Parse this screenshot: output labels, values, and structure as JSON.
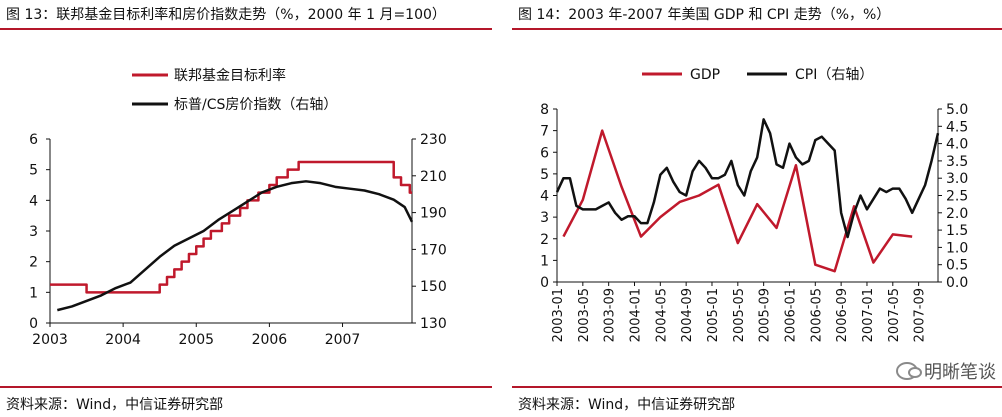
{
  "left": {
    "title": "图 13：联邦基金目标利率和房价指数走势（%，2000 年 1 月=100）",
    "source": "资料来源：Wind，中信证券研究部",
    "chart_data": {
      "type": "line",
      "title": "图 13：联邦基金目标利率和房价指数走势（%，2000 年 1 月=100）",
      "x_tick_labels": [
        "2003",
        "2004",
        "2005",
        "2006",
        "2007"
      ],
      "y_left": {
        "ticks": [
          "0",
          "1",
          "2",
          "3",
          "4",
          "5",
          "6"
        ],
        "range": [
          0,
          6
        ]
      },
      "y_right": {
        "ticks": [
          "130",
          "150",
          "170",
          "190",
          "210",
          "230"
        ],
        "range": [
          130,
          230
        ]
      },
      "x_range": [
        2003.0,
        2007.95
      ],
      "legend": [
        "联邦基金目标利率",
        "标普/CS房价指数（右轴）"
      ],
      "legend_position": "top",
      "series": [
        {
          "name": "联邦基金目标利率",
          "axis": "left",
          "color": "#c0192c",
          "step": true,
          "points": [
            [
              2003.0,
              1.25
            ],
            [
              2003.5,
              1.0
            ],
            [
              2004.5,
              1.25
            ],
            [
              2004.6,
              1.5
            ],
            [
              2004.7,
              1.75
            ],
            [
              2004.8,
              2.0
            ],
            [
              2004.9,
              2.25
            ],
            [
              2005.0,
              2.5
            ],
            [
              2005.1,
              2.75
            ],
            [
              2005.2,
              3.0
            ],
            [
              2005.35,
              3.25
            ],
            [
              2005.45,
              3.5
            ],
            [
              2005.6,
              3.75
            ],
            [
              2005.7,
              4.0
            ],
            [
              2005.85,
              4.25
            ],
            [
              2006.0,
              4.5
            ],
            [
              2006.1,
              4.75
            ],
            [
              2006.25,
              5.0
            ],
            [
              2006.4,
              5.25
            ],
            [
              2007.7,
              4.75
            ],
            [
              2007.8,
              4.5
            ],
            [
              2007.92,
              4.25
            ],
            [
              2007.95,
              4.25
            ]
          ]
        },
        {
          "name": "标普/CS房价指数（右轴）",
          "axis": "right",
          "color": "#111111",
          "step": false,
          "points": [
            [
              2003.1,
              137
            ],
            [
              2003.3,
              139
            ],
            [
              2003.5,
              142
            ],
            [
              2003.7,
              145
            ],
            [
              2003.9,
              149
            ],
            [
              2004.1,
              152
            ],
            [
              2004.3,
              159
            ],
            [
              2004.5,
              166
            ],
            [
              2004.7,
              172
            ],
            [
              2004.9,
              176
            ],
            [
              2005.1,
              180
            ],
            [
              2005.3,
              186
            ],
            [
              2005.5,
              191
            ],
            [
              2005.7,
              196
            ],
            [
              2005.9,
              201
            ],
            [
              2006.1,
              204
            ],
            [
              2006.3,
              206
            ],
            [
              2006.5,
              207
            ],
            [
              2006.7,
              206
            ],
            [
              2006.9,
              204
            ],
            [
              2007.1,
              203
            ],
            [
              2007.3,
              202
            ],
            [
              2007.5,
              200
            ],
            [
              2007.7,
              197
            ],
            [
              2007.85,
              193
            ],
            [
              2007.95,
              185
            ]
          ]
        }
      ]
    }
  },
  "right": {
    "title": "图 14：2003 年-2007 年美国 GDP 和 CPI 走势（%，%）",
    "source": "资料来源：Wind，中信证券研究部",
    "watermark": "明晰笔谈",
    "chart_data": {
      "type": "line",
      "title": "图 14：2003 年-2007 年美国 GDP 和 CPI 走势（%，%）",
      "x_tick_labels": [
        "2003-01",
        "2003-05",
        "2003-09",
        "2004-01",
        "2004-05",
        "2004-09",
        "2005-01",
        "2005-05",
        "2005-09",
        "2006-01",
        "2006-05",
        "2006-09",
        "2007-01",
        "2007-05",
        "2007-09"
      ],
      "x_range": [
        0,
        59
      ],
      "y_left": {
        "ticks": [
          "0",
          "1",
          "2",
          "3",
          "4",
          "5",
          "6",
          "7",
          "8"
        ],
        "range": [
          0,
          8
        ]
      },
      "y_right": {
        "ticks": [
          "0.0",
          "0.5",
          "1.0",
          "1.5",
          "2.0",
          "2.5",
          "3.0",
          "3.5",
          "4.0",
          "4.5",
          "5.0"
        ],
        "range": [
          0,
          5
        ]
      },
      "legend": [
        "GDP",
        "CPI（右轴）"
      ],
      "legend_position": "top",
      "series": [
        {
          "name": "GDP",
          "axis": "left",
          "color": "#c0192c",
          "points": [
            [
              1,
              2.1
            ],
            [
              4,
              3.8
            ],
            [
              7,
              7.0
            ],
            [
              10,
              4.4
            ],
            [
              13,
              2.1
            ],
            [
              16,
              3.0
            ],
            [
              19,
              3.7
            ],
            [
              22,
              4.0
            ],
            [
              25,
              4.5
            ],
            [
              28,
              1.8
            ],
            [
              31,
              3.6
            ],
            [
              34,
              2.5
            ],
            [
              37,
              5.4
            ],
            [
              40,
              0.8
            ],
            [
              43,
              0.5
            ],
            [
              46,
              3.5
            ],
            [
              49,
              0.9
            ],
            [
              52,
              2.2
            ],
            [
              55,
              2.1
            ]
          ]
        },
        {
          "name": "CPI（右轴）",
          "axis": "right",
          "color": "#111111",
          "points": [
            [
              0,
              2.6
            ],
            [
              1,
              3.0
            ],
            [
              2,
              3.0
            ],
            [
              3,
              2.2
            ],
            [
              4,
              2.1
            ],
            [
              5,
              2.1
            ],
            [
              6,
              2.1
            ],
            [
              7,
              2.2
            ],
            [
              8,
              2.3
            ],
            [
              9,
              2.0
            ],
            [
              10,
              1.8
            ],
            [
              11,
              1.9
            ],
            [
              12,
              1.9
            ],
            [
              13,
              1.7
            ],
            [
              14,
              1.7
            ],
            [
              15,
              2.3
            ],
            [
              16,
              3.1
            ],
            [
              17,
              3.3
            ],
            [
              18,
              2.9
            ],
            [
              19,
              2.6
            ],
            [
              20,
              2.5
            ],
            [
              21,
              3.2
            ],
            [
              22,
              3.5
            ],
            [
              23,
              3.3
            ],
            [
              24,
              3.0
            ],
            [
              25,
              3.0
            ],
            [
              26,
              3.1
            ],
            [
              27,
              3.5
            ],
            [
              28,
              2.8
            ],
            [
              29,
              2.5
            ],
            [
              30,
              3.2
            ],
            [
              31,
              3.6
            ],
            [
              32,
              4.7
            ],
            [
              33,
              4.3
            ],
            [
              34,
              3.4
            ],
            [
              35,
              3.3
            ],
            [
              36,
              4.0
            ],
            [
              37,
              3.6
            ],
            [
              38,
              3.4
            ],
            [
              39,
              3.5
            ],
            [
              40,
              4.1
            ],
            [
              41,
              4.2
            ],
            [
              42,
              4.0
            ],
            [
              43,
              3.8
            ],
            [
              44,
              2.0
            ],
            [
              45,
              1.3
            ],
            [
              46,
              2.0
            ],
            [
              47,
              2.5
            ],
            [
              48,
              2.1
            ],
            [
              49,
              2.4
            ],
            [
              50,
              2.7
            ],
            [
              51,
              2.6
            ],
            [
              52,
              2.7
            ],
            [
              53,
              2.7
            ],
            [
              54,
              2.4
            ],
            [
              55,
              2.0
            ],
            [
              56,
              2.4
            ],
            [
              57,
              2.8
            ],
            [
              58,
              3.5
            ],
            [
              59,
              4.3
            ]
          ]
        }
      ]
    }
  }
}
